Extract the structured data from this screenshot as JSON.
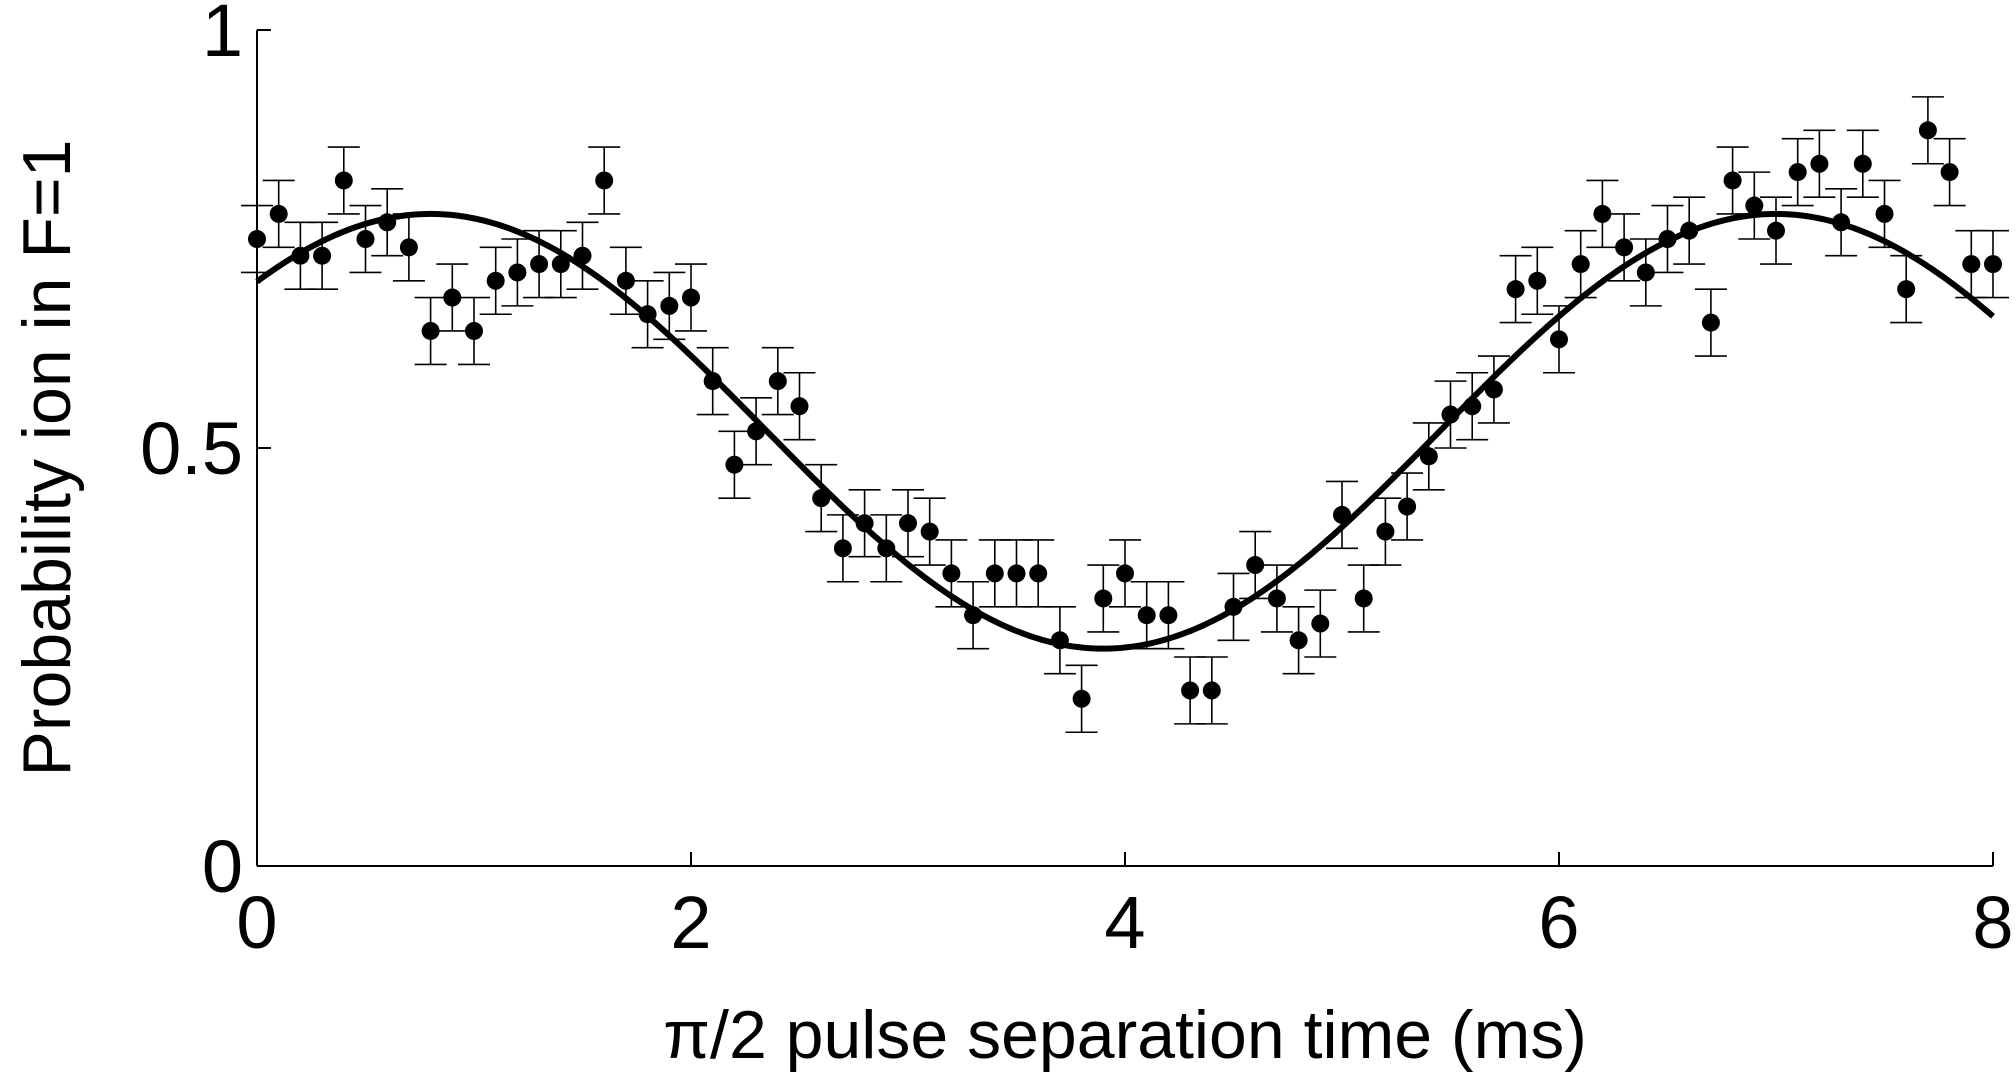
{
  "chart_data": {
    "type": "scatter",
    "xlabel": "π/2 pulse separation time (ms)",
    "ylabel": "Probability ion in F=1",
    "xlim": [
      0,
      8
    ],
    "ylim": [
      0,
      1
    ],
    "x_ticks": [
      "0",
      "2",
      "4",
      "6",
      "8"
    ],
    "y_ticks": [
      "0",
      "0.5",
      "1"
    ],
    "grid": false,
    "legend": "none",
    "colors": {
      "points": "#000000",
      "fit": "#000000",
      "axis": "#000000"
    },
    "series": [
      {
        "kind": "points_with_error_bars",
        "x": [
          0.0,
          0.1,
          0.2,
          0.3,
          0.4,
          0.5,
          0.6,
          0.7,
          0.8,
          0.9,
          1.0,
          1.1,
          1.2,
          1.3,
          1.4,
          1.5,
          1.6,
          1.7,
          1.8,
          1.9,
          2.0,
          2.1,
          2.2,
          2.3,
          2.4,
          2.5,
          2.6,
          2.7,
          2.8,
          2.9,
          3.0,
          3.1,
          3.2,
          3.3,
          3.4,
          3.5,
          3.6,
          3.7,
          3.8,
          3.9,
          4.0,
          4.1,
          4.2,
          4.3,
          4.4,
          4.5,
          4.6,
          4.7,
          4.8,
          4.9,
          5.0,
          5.1,
          5.2,
          5.3,
          5.4,
          5.5,
          5.6,
          5.7,
          5.8,
          5.9,
          6.0,
          6.1,
          6.2,
          6.3,
          6.4,
          6.5,
          6.6,
          6.7,
          6.8,
          6.9,
          7.0,
          7.1,
          7.2,
          7.3,
          7.4,
          7.5,
          7.6,
          7.7,
          7.8,
          7.9,
          8.0
        ],
        "y": [
          0.75,
          0.78,
          0.73,
          0.73,
          0.82,
          0.75,
          0.77,
          0.74,
          0.64,
          0.68,
          0.64,
          0.7,
          0.71,
          0.72,
          0.72,
          0.73,
          0.82,
          0.7,
          0.66,
          0.67,
          0.68,
          0.58,
          0.48,
          0.52,
          0.58,
          0.55,
          0.44,
          0.38,
          0.41,
          0.38,
          0.41,
          0.4,
          0.35,
          0.3,
          0.35,
          0.35,
          0.35,
          0.27,
          0.2,
          0.32,
          0.35,
          0.3,
          0.3,
          0.21,
          0.21,
          0.31,
          0.36,
          0.32,
          0.27,
          0.29,
          0.42,
          0.32,
          0.4,
          0.43,
          0.49,
          0.54,
          0.55,
          0.57,
          0.69,
          0.7,
          0.63,
          0.72,
          0.78,
          0.74,
          0.71,
          0.75,
          0.76,
          0.65,
          0.82,
          0.79,
          0.76,
          0.83,
          0.84,
          0.77,
          0.84,
          0.78,
          0.69,
          0.88,
          0.83,
          0.72,
          0.72
        ],
        "error": 0.04
      },
      {
        "kind": "fit_curve",
        "function": "0.52 + 0.26*cos(2*pi*(x-0.8)/6.2)"
      }
    ]
  }
}
